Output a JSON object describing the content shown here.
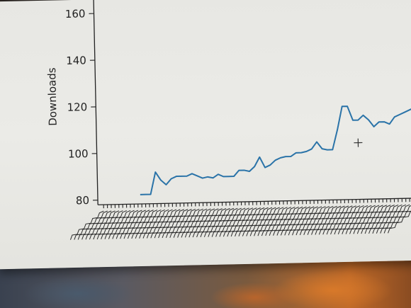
{
  "chart_data": {
    "type": "line",
    "ylabel": "Downloads",
    "yticks": [
      80,
      100,
      120,
      140,
      160
    ],
    "ylim": [
      78,
      166
    ],
    "grid": false,
    "series": [
      {
        "values": [
          82,
          82,
          82,
          91.5,
          88,
          86,
          88.5,
          89.5,
          89.5,
          89.5,
          90.5,
          89.5,
          88.5,
          89,
          88.5,
          90,
          89,
          89,
          89,
          91.5,
          91.5,
          91,
          93,
          97,
          92.5,
          93.5,
          95.5,
          96.5,
          97,
          97,
          98.5,
          98.5,
          99,
          100,
          103,
          100,
          99.5,
          99.5,
          108,
          118,
          118,
          112,
          112,
          114,
          112,
          109,
          111,
          111,
          110,
          113,
          114,
          115,
          116,
          117,
          121
        ]
      }
    ]
  },
  "colors": {
    "line": "#2a73a8",
    "background": "#e9e9e5"
  },
  "cursor": "crosshair"
}
